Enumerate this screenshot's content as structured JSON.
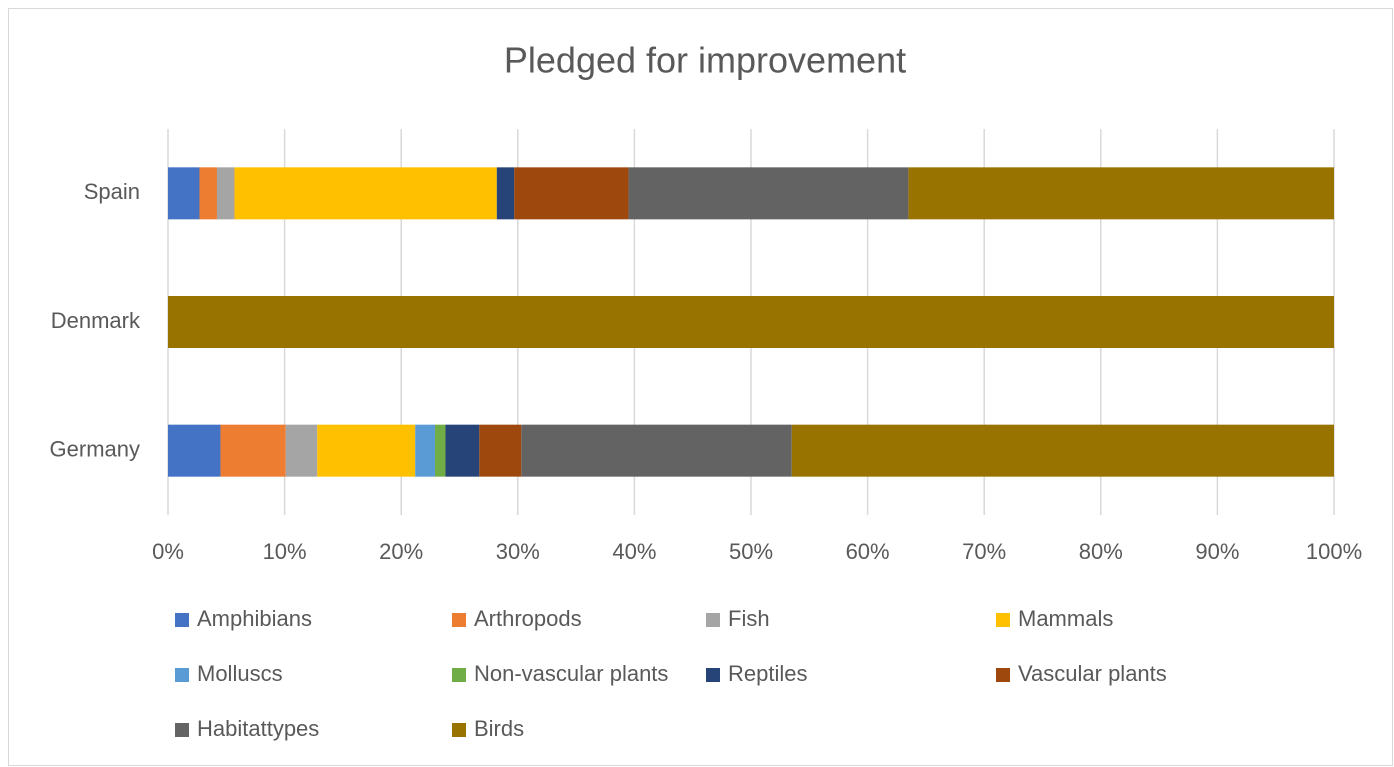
{
  "chart_data": {
    "type": "stacked_bar_horizontal",
    "title": "Pledged for improvement",
    "categories": [
      "Germany",
      "Denmark",
      "Spain"
    ],
    "series": [
      {
        "name": "Amphibians",
        "color": "#4472c4",
        "values": [
          4.5,
          0,
          2.7
        ]
      },
      {
        "name": "Arthropods",
        "color": "#ed7d31",
        "values": [
          5.6,
          0,
          1.5
        ]
      },
      {
        "name": "Fish",
        "color": "#a5a5a5",
        "values": [
          2.7,
          0,
          1.5
        ]
      },
      {
        "name": "Mammals",
        "color": "#ffc000",
        "values": [
          8.4,
          0,
          22.5
        ]
      },
      {
        "name": "Molluscs",
        "color": "#5b9bd5",
        "values": [
          1.7,
          0,
          0
        ]
      },
      {
        "name": "Non-vascular plants",
        "color": "#70ad47",
        "values": [
          0.9,
          0,
          0
        ]
      },
      {
        "name": "Reptiles",
        "color": "#264478",
        "values": [
          2.9,
          0,
          1.5
        ]
      },
      {
        "name": "Vascular plants",
        "color": "#9e480e",
        "values": [
          3.6,
          0,
          9.8
        ]
      },
      {
        "name": "Habitattypes",
        "color": "#636363",
        "values": [
          23.2,
          0,
          24.0
        ]
      },
      {
        "name": "Birds",
        "color": "#997300",
        "values": [
          46.5,
          100,
          36.5
        ]
      }
    ],
    "xlim": [
      0,
      100
    ],
    "xticks": [
      {
        "value": 0,
        "label": "0%"
      },
      {
        "value": 10,
        "label": "10%"
      },
      {
        "value": 20,
        "label": "20%"
      },
      {
        "value": 30,
        "label": "30%"
      },
      {
        "value": 40,
        "label": "40%"
      },
      {
        "value": 50,
        "label": "50%"
      },
      {
        "value": 60,
        "label": "60%"
      },
      {
        "value": 70,
        "label": "70%"
      },
      {
        "value": 80,
        "label": "80%"
      },
      {
        "value": 90,
        "label": "90%"
      },
      {
        "value": 100,
        "label": "100%"
      }
    ],
    "grid": true,
    "legend": "bottom"
  }
}
